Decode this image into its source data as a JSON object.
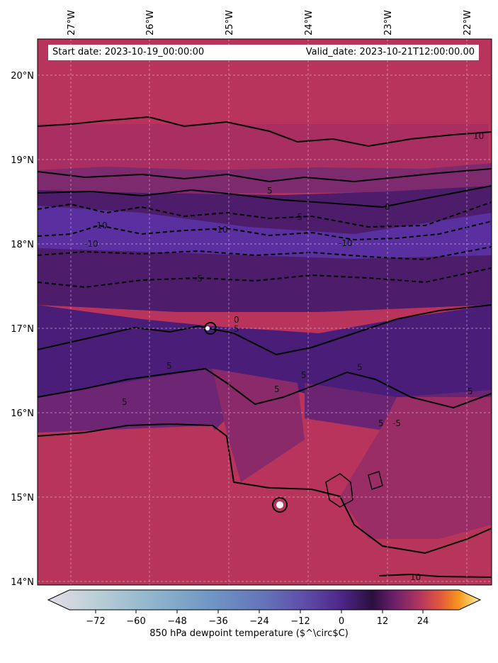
{
  "map": {
    "start_date": "Start date: 2023-10-19_00:00:00",
    "valid_date": "Valid_date: 2023-10-21T12:00:00.00",
    "lon_ticks": [
      "27°W",
      "26°W",
      "25°W",
      "24°W",
      "23°W",
      "22°W"
    ],
    "lat_ticks": [
      "20°N",
      "19°N",
      "18°N",
      "17°N",
      "16°N",
      "15°N",
      "14°N"
    ],
    "contour_labels": [
      "10",
      "5",
      "0",
      "-5",
      "-10",
      "-10",
      "-10",
      "-10",
      "-5",
      "0",
      "5",
      "5",
      "5",
      "5",
      "5",
      "5",
      "5",
      "-5",
      "5",
      "10"
    ]
  },
  "colorbar": {
    "label": "850 hPa dewpoint temperature ($^\\circ$C)",
    "ticks": [
      "−72",
      "−60",
      "−48",
      "−36",
      "−24",
      "−12",
      "0",
      "12",
      "24"
    ],
    "colors": [
      "#e4dde6",
      "#b7cdd5",
      "#8db4cc",
      "#6e95c4",
      "#6474b9",
      "#5e4aa8",
      "#4c2688",
      "#2a0f3e",
      "#6a1f6a",
      "#b23560",
      "#e55a3c",
      "#f7961c",
      "#fff29a"
    ]
  }
}
